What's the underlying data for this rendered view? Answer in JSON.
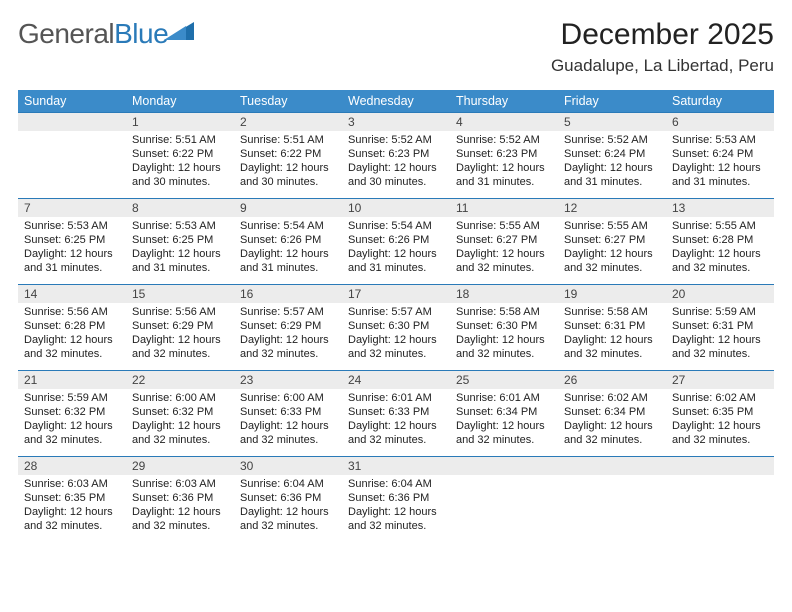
{
  "logo": {
    "text_main": "General",
    "text_sub": "Blue"
  },
  "title": "December 2025",
  "location": "Guadalupe, La Libertad, Peru",
  "colors": {
    "header_bg": "#3b8bc9",
    "header_fg": "#ffffff",
    "daynum_bg": "#ececec",
    "week_divider": "#2a7ab8",
    "body_text": "#222222",
    "logo_gray": "#555555",
    "logo_blue": "#2a7ab8"
  },
  "weekdays": [
    "Sunday",
    "Monday",
    "Tuesday",
    "Wednesday",
    "Thursday",
    "Friday",
    "Saturday"
  ],
  "weeks": [
    [
      {
        "n": "",
        "sunrise": "",
        "sunset": "",
        "daylight": ""
      },
      {
        "n": "1",
        "sunrise": "Sunrise: 5:51 AM",
        "sunset": "Sunset: 6:22 PM",
        "daylight": "Daylight: 12 hours and 30 minutes."
      },
      {
        "n": "2",
        "sunrise": "Sunrise: 5:51 AM",
        "sunset": "Sunset: 6:22 PM",
        "daylight": "Daylight: 12 hours and 30 minutes."
      },
      {
        "n": "3",
        "sunrise": "Sunrise: 5:52 AM",
        "sunset": "Sunset: 6:23 PM",
        "daylight": "Daylight: 12 hours and 30 minutes."
      },
      {
        "n": "4",
        "sunrise": "Sunrise: 5:52 AM",
        "sunset": "Sunset: 6:23 PM",
        "daylight": "Daylight: 12 hours and 31 minutes."
      },
      {
        "n": "5",
        "sunrise": "Sunrise: 5:52 AM",
        "sunset": "Sunset: 6:24 PM",
        "daylight": "Daylight: 12 hours and 31 minutes."
      },
      {
        "n": "6",
        "sunrise": "Sunrise: 5:53 AM",
        "sunset": "Sunset: 6:24 PM",
        "daylight": "Daylight: 12 hours and 31 minutes."
      }
    ],
    [
      {
        "n": "7",
        "sunrise": "Sunrise: 5:53 AM",
        "sunset": "Sunset: 6:25 PM",
        "daylight": "Daylight: 12 hours and 31 minutes."
      },
      {
        "n": "8",
        "sunrise": "Sunrise: 5:53 AM",
        "sunset": "Sunset: 6:25 PM",
        "daylight": "Daylight: 12 hours and 31 minutes."
      },
      {
        "n": "9",
        "sunrise": "Sunrise: 5:54 AM",
        "sunset": "Sunset: 6:26 PM",
        "daylight": "Daylight: 12 hours and 31 minutes."
      },
      {
        "n": "10",
        "sunrise": "Sunrise: 5:54 AM",
        "sunset": "Sunset: 6:26 PM",
        "daylight": "Daylight: 12 hours and 31 minutes."
      },
      {
        "n": "11",
        "sunrise": "Sunrise: 5:55 AM",
        "sunset": "Sunset: 6:27 PM",
        "daylight": "Daylight: 12 hours and 32 minutes."
      },
      {
        "n": "12",
        "sunrise": "Sunrise: 5:55 AM",
        "sunset": "Sunset: 6:27 PM",
        "daylight": "Daylight: 12 hours and 32 minutes."
      },
      {
        "n": "13",
        "sunrise": "Sunrise: 5:55 AM",
        "sunset": "Sunset: 6:28 PM",
        "daylight": "Daylight: 12 hours and 32 minutes."
      }
    ],
    [
      {
        "n": "14",
        "sunrise": "Sunrise: 5:56 AM",
        "sunset": "Sunset: 6:28 PM",
        "daylight": "Daylight: 12 hours and 32 minutes."
      },
      {
        "n": "15",
        "sunrise": "Sunrise: 5:56 AM",
        "sunset": "Sunset: 6:29 PM",
        "daylight": "Daylight: 12 hours and 32 minutes."
      },
      {
        "n": "16",
        "sunrise": "Sunrise: 5:57 AM",
        "sunset": "Sunset: 6:29 PM",
        "daylight": "Daylight: 12 hours and 32 minutes."
      },
      {
        "n": "17",
        "sunrise": "Sunrise: 5:57 AM",
        "sunset": "Sunset: 6:30 PM",
        "daylight": "Daylight: 12 hours and 32 minutes."
      },
      {
        "n": "18",
        "sunrise": "Sunrise: 5:58 AM",
        "sunset": "Sunset: 6:30 PM",
        "daylight": "Daylight: 12 hours and 32 minutes."
      },
      {
        "n": "19",
        "sunrise": "Sunrise: 5:58 AM",
        "sunset": "Sunset: 6:31 PM",
        "daylight": "Daylight: 12 hours and 32 minutes."
      },
      {
        "n": "20",
        "sunrise": "Sunrise: 5:59 AM",
        "sunset": "Sunset: 6:31 PM",
        "daylight": "Daylight: 12 hours and 32 minutes."
      }
    ],
    [
      {
        "n": "21",
        "sunrise": "Sunrise: 5:59 AM",
        "sunset": "Sunset: 6:32 PM",
        "daylight": "Daylight: 12 hours and 32 minutes."
      },
      {
        "n": "22",
        "sunrise": "Sunrise: 6:00 AM",
        "sunset": "Sunset: 6:32 PM",
        "daylight": "Daylight: 12 hours and 32 minutes."
      },
      {
        "n": "23",
        "sunrise": "Sunrise: 6:00 AM",
        "sunset": "Sunset: 6:33 PM",
        "daylight": "Daylight: 12 hours and 32 minutes."
      },
      {
        "n": "24",
        "sunrise": "Sunrise: 6:01 AM",
        "sunset": "Sunset: 6:33 PM",
        "daylight": "Daylight: 12 hours and 32 minutes."
      },
      {
        "n": "25",
        "sunrise": "Sunrise: 6:01 AM",
        "sunset": "Sunset: 6:34 PM",
        "daylight": "Daylight: 12 hours and 32 minutes."
      },
      {
        "n": "26",
        "sunrise": "Sunrise: 6:02 AM",
        "sunset": "Sunset: 6:34 PM",
        "daylight": "Daylight: 12 hours and 32 minutes."
      },
      {
        "n": "27",
        "sunrise": "Sunrise: 6:02 AM",
        "sunset": "Sunset: 6:35 PM",
        "daylight": "Daylight: 12 hours and 32 minutes."
      }
    ],
    [
      {
        "n": "28",
        "sunrise": "Sunrise: 6:03 AM",
        "sunset": "Sunset: 6:35 PM",
        "daylight": "Daylight: 12 hours and 32 minutes."
      },
      {
        "n": "29",
        "sunrise": "Sunrise: 6:03 AM",
        "sunset": "Sunset: 6:36 PM",
        "daylight": "Daylight: 12 hours and 32 minutes."
      },
      {
        "n": "30",
        "sunrise": "Sunrise: 6:04 AM",
        "sunset": "Sunset: 6:36 PM",
        "daylight": "Daylight: 12 hours and 32 minutes."
      },
      {
        "n": "31",
        "sunrise": "Sunrise: 6:04 AM",
        "sunset": "Sunset: 6:36 PM",
        "daylight": "Daylight: 12 hours and 32 minutes."
      },
      {
        "n": "",
        "sunrise": "",
        "sunset": "",
        "daylight": ""
      },
      {
        "n": "",
        "sunrise": "",
        "sunset": "",
        "daylight": ""
      },
      {
        "n": "",
        "sunrise": "",
        "sunset": "",
        "daylight": ""
      }
    ]
  ]
}
